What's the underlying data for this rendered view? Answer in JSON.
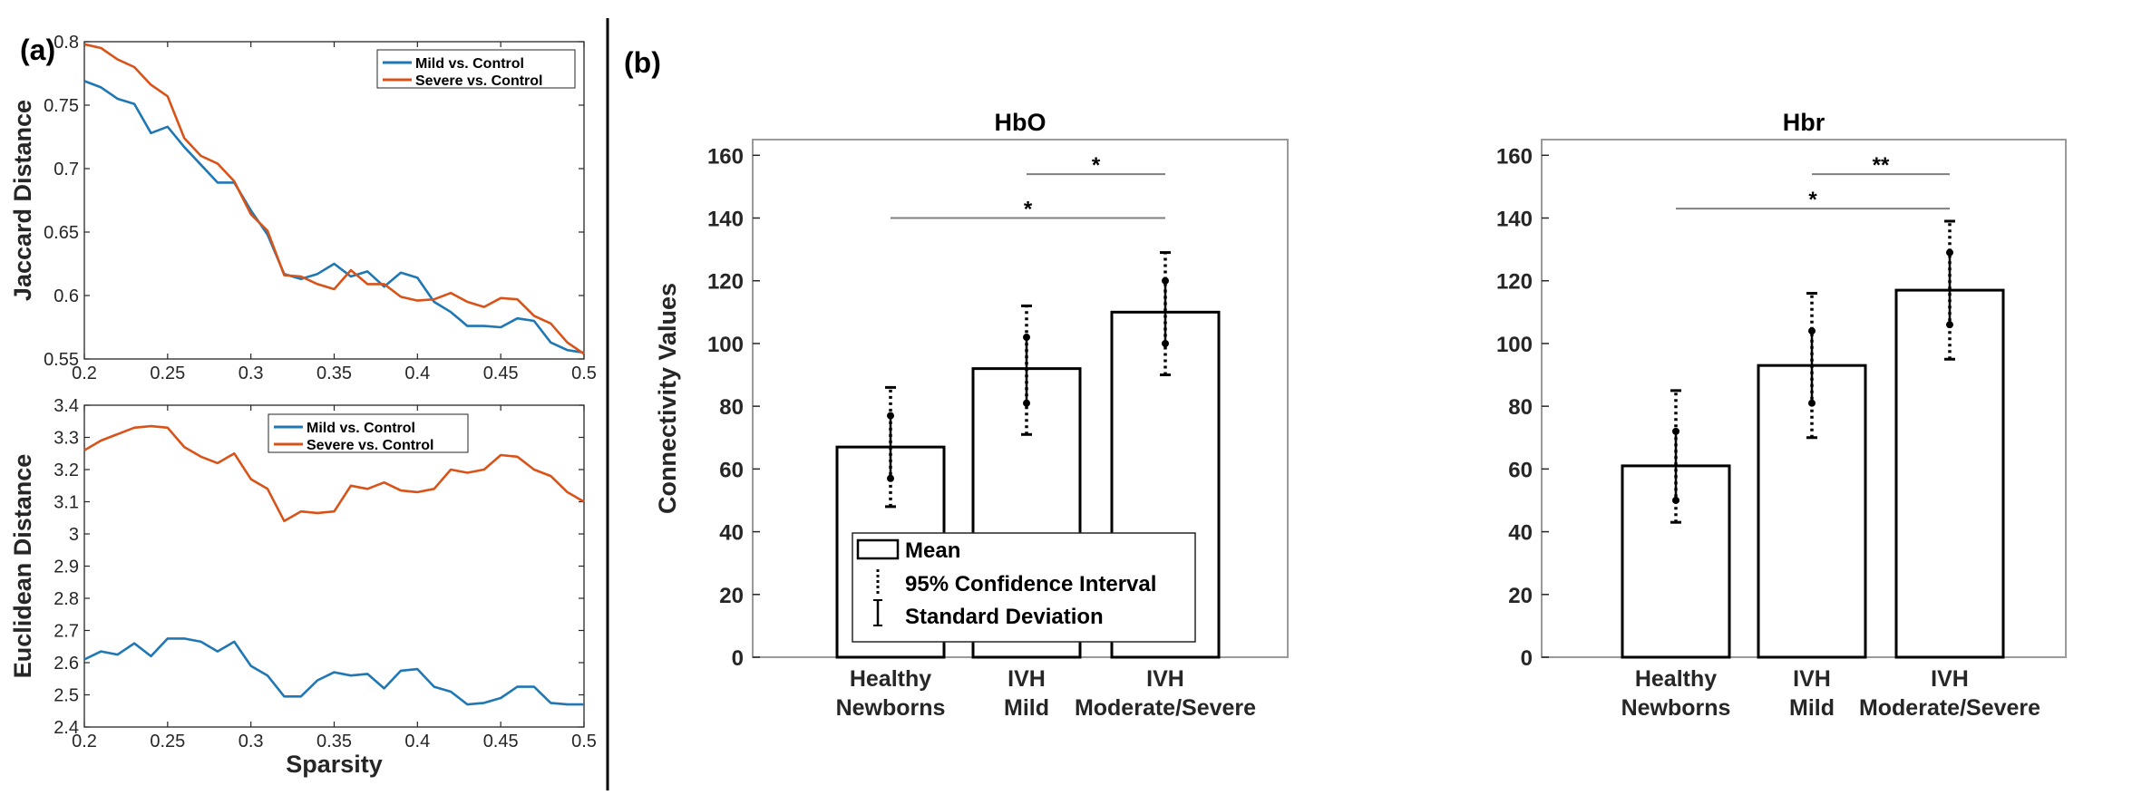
{
  "panel_labels": {
    "a": "(a)",
    "b": "(b)"
  },
  "chart_data": [
    {
      "id": "jaccard",
      "type": "line",
      "xlabel": "",
      "ylabel": "Jaccard Distance",
      "xlim": [
        0.2,
        0.5
      ],
      "ylim": [
        0.55,
        0.8
      ],
      "xticks": [
        "0.2",
        "0.25",
        "0.3",
        "0.35",
        "0.4",
        "0.45",
        "0.5"
      ],
      "yticks": [
        "0.55",
        "0.6",
        "0.65",
        "0.7",
        "0.75",
        "0.8"
      ],
      "grid": false,
      "legend_position": "top-right",
      "x": [
        0.2,
        0.21,
        0.22,
        0.23,
        0.24,
        0.25,
        0.26,
        0.27,
        0.28,
        0.29,
        0.3,
        0.31,
        0.32,
        0.33,
        0.34,
        0.35,
        0.36,
        0.37,
        0.38,
        0.39,
        0.4,
        0.41,
        0.42,
        0.43,
        0.44,
        0.45,
        0.46,
        0.47,
        0.48,
        0.49,
        0.5
      ],
      "series": [
        {
          "name": "Mild vs. Control",
          "color": "#1f77b4",
          "values": [
            0.769,
            0.764,
            0.755,
            0.751,
            0.728,
            0.733,
            0.717,
            0.703,
            0.689,
            0.689,
            0.667,
            0.648,
            0.617,
            0.613,
            0.617,
            0.625,
            0.615,
            0.619,
            0.607,
            0.618,
            0.614,
            0.595,
            0.587,
            0.576,
            0.576,
            0.575,
            0.582,
            0.58,
            0.563,
            0.557,
            0.555
          ]
        },
        {
          "name": "Severe vs. Control",
          "color": "#d95319",
          "values": [
            0.798,
            0.795,
            0.786,
            0.78,
            0.766,
            0.757,
            0.724,
            0.71,
            0.704,
            0.69,
            0.664,
            0.651,
            0.616,
            0.615,
            0.609,
            0.605,
            0.62,
            0.609,
            0.609,
            0.599,
            0.596,
            0.597,
            0.602,
            0.595,
            0.591,
            0.598,
            0.597,
            0.584,
            0.578,
            0.563,
            0.554
          ]
        }
      ]
    },
    {
      "id": "euclidean",
      "type": "line",
      "xlabel": "Sparsity",
      "ylabel": "Euclidean Distance",
      "xlim": [
        0.2,
        0.5
      ],
      "ylim": [
        2.4,
        3.4
      ],
      "xticks": [
        "0.2",
        "0.25",
        "0.3",
        "0.35",
        "0.4",
        "0.45",
        "0.5"
      ],
      "yticks": [
        "2.4",
        "2.5",
        "2.6",
        "2.7",
        "2.8",
        "2.9",
        "3",
        "3.1",
        "3.2",
        "3.3",
        "3.4"
      ],
      "grid": false,
      "legend_position": "top-center",
      "x": [
        0.2,
        0.21,
        0.22,
        0.23,
        0.24,
        0.25,
        0.26,
        0.27,
        0.28,
        0.29,
        0.3,
        0.31,
        0.32,
        0.33,
        0.34,
        0.35,
        0.36,
        0.37,
        0.38,
        0.39,
        0.4,
        0.41,
        0.42,
        0.43,
        0.44,
        0.45,
        0.46,
        0.47,
        0.48,
        0.49,
        0.5
      ],
      "series": [
        {
          "name": "Mild vs. Control",
          "color": "#1f77b4",
          "values": [
            2.61,
            2.635,
            2.625,
            2.66,
            2.62,
            2.675,
            2.675,
            2.665,
            2.635,
            2.665,
            2.59,
            2.56,
            2.495,
            2.495,
            2.545,
            2.57,
            2.56,
            2.565,
            2.52,
            2.575,
            2.58,
            2.525,
            2.51,
            2.47,
            2.475,
            2.49,
            2.525,
            2.525,
            2.475,
            2.47,
            2.47
          ]
        },
        {
          "name": "Severe vs. Control",
          "color": "#d95319",
          "values": [
            3.26,
            3.29,
            3.31,
            3.33,
            3.335,
            3.33,
            3.27,
            3.24,
            3.22,
            3.25,
            3.17,
            3.14,
            3.04,
            3.07,
            3.065,
            3.07,
            3.15,
            3.14,
            3.16,
            3.135,
            3.13,
            3.14,
            3.2,
            3.19,
            3.2,
            3.245,
            3.24,
            3.2,
            3.18,
            3.13,
            3.1
          ]
        }
      ]
    },
    {
      "id": "hbo",
      "type": "bar",
      "title": "HbO",
      "ylabel": "Connectivity Values",
      "ylim": [
        0,
        165
      ],
      "yticks": [
        "0",
        "20",
        "40",
        "60",
        "80",
        "100",
        "120",
        "140",
        "160"
      ],
      "categories": [
        [
          "Healthy",
          "Newborns"
        ],
        [
          "IVH",
          "Mild"
        ],
        [
          "IVH",
          "Moderate/Severe"
        ]
      ],
      "values": [
        67,
        92,
        110
      ],
      "std": [
        [
          57,
          77
        ],
        [
          81,
          102
        ],
        [
          100,
          120
        ]
      ],
      "ci95": [
        [
          48,
          86
        ],
        [
          71,
          112
        ],
        [
          90,
          129
        ]
      ],
      "significance": [
        {
          "from": 1,
          "to": 2,
          "label": "*",
          "y": 154
        },
        {
          "from": 0,
          "to": 2,
          "label": "*",
          "y": 140
        }
      ],
      "legend": [
        "Mean",
        "95% Confidence Interval",
        "Standard Deviation"
      ]
    },
    {
      "id": "hbr",
      "type": "bar",
      "title": "Hbr",
      "ylabel": "",
      "ylim": [
        0,
        165
      ],
      "yticks": [
        "0",
        "20",
        "40",
        "60",
        "80",
        "100",
        "120",
        "140",
        "160"
      ],
      "categories": [
        [
          "Healthy",
          "Newborns"
        ],
        [
          "IVH",
          "Mild"
        ],
        [
          "IVH",
          "Moderate/Severe"
        ]
      ],
      "values": [
        61,
        93,
        117
      ],
      "std": [
        [
          50,
          72
        ],
        [
          81,
          104
        ],
        [
          106,
          129
        ]
      ],
      "ci95": [
        [
          43,
          85
        ],
        [
          70,
          116
        ],
        [
          95,
          139
        ]
      ],
      "significance": [
        {
          "from": 1,
          "to": 2,
          "label": "**",
          "y": 154
        },
        {
          "from": 0,
          "to": 2,
          "label": "*",
          "y": 143
        }
      ]
    }
  ]
}
